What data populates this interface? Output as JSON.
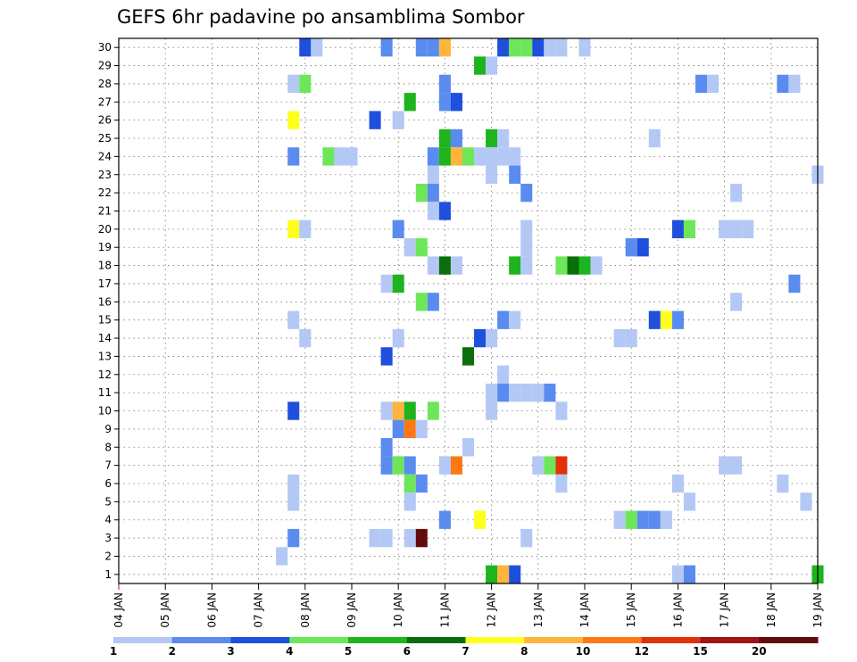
{
  "chart_data": {
    "type": "heatmap",
    "title": "GEFS 6hr padavine po ansamblima Sombor",
    "xlabel": "",
    "ylabel": "",
    "x_tick_labels": [
      "04 JAN",
      "05 JAN",
      "06 JAN",
      "07 JAN",
      "08 JAN",
      "09 JAN",
      "10 JAN",
      "11 JAN",
      "12 JAN",
      "13 JAN",
      "14 JAN",
      "15 JAN",
      "16 JAN",
      "17 JAN",
      "18 JAN",
      "19 JAN"
    ],
    "y_tick_labels": [
      "1",
      "2",
      "3",
      "4",
      "5",
      "6",
      "7",
      "8",
      "9",
      "10",
      "11",
      "12",
      "13",
      "14",
      "15",
      "16",
      "17",
      "18",
      "19",
      "20",
      "21",
      "22",
      "23",
      "24",
      "25",
      "26",
      "27",
      "28",
      "29",
      "30"
    ],
    "xlim": [
      0,
      60
    ],
    "ylim": [
      0.5,
      30.5
    ],
    "x_unit": "6h steps from 04 JAN",
    "y_unit": "ensemble member",
    "grid": true,
    "colorbar": {
      "labels": [
        "1",
        "2",
        "3",
        "4",
        "5",
        "6",
        "7",
        "8",
        "10",
        "12",
        "15",
        "20"
      ],
      "colors": [
        "#b4c8f5",
        "#5a8cf0",
        "#1e50dc",
        "#6ee65a",
        "#1eb41e",
        "#0a6e0a",
        "#ffff1e",
        "#ffb43c",
        "#ff7814",
        "#e1320a",
        "#a01414",
        "#640a0a"
      ]
    },
    "values_note": "each cell: [step, member, bin]",
    "cells": [
      [
        16,
        30,
        2
      ],
      [
        17,
        30,
        0
      ],
      [
        23,
        30,
        1
      ],
      [
        26,
        30,
        1
      ],
      [
        27,
        30,
        1
      ],
      [
        28,
        30,
        7
      ],
      [
        33,
        30,
        2
      ],
      [
        34,
        30,
        3
      ],
      [
        35,
        30,
        3
      ],
      [
        36,
        30,
        2
      ],
      [
        37,
        30,
        0
      ],
      [
        38,
        30,
        0
      ],
      [
        40,
        30,
        0
      ],
      [
        31,
        29,
        4
      ],
      [
        32,
        29,
        0
      ],
      [
        15,
        28,
        0
      ],
      [
        16,
        28,
        3
      ],
      [
        28,
        28,
        1
      ],
      [
        50,
        28,
        1
      ],
      [
        51,
        28,
        0
      ],
      [
        57,
        28,
        1
      ],
      [
        58,
        28,
        0
      ],
      [
        28,
        27,
        1
      ],
      [
        25,
        27,
        4
      ],
      [
        29,
        27,
        2
      ],
      [
        15,
        26,
        6
      ],
      [
        22,
        26,
        2
      ],
      [
        24,
        26,
        0
      ],
      [
        28,
        25,
        4
      ],
      [
        29,
        25,
        1
      ],
      [
        32,
        25,
        4
      ],
      [
        33,
        25,
        0
      ],
      [
        46,
        25,
        0
      ],
      [
        15,
        24,
        1
      ],
      [
        18,
        24,
        3
      ],
      [
        19,
        24,
        0
      ],
      [
        20,
        24,
        0
      ],
      [
        27,
        24,
        1
      ],
      [
        28,
        24,
        4
      ],
      [
        29,
        24,
        7
      ],
      [
        30,
        24,
        3
      ],
      [
        31,
        24,
        0
      ],
      [
        32,
        24,
        0
      ],
      [
        33,
        24,
        0
      ],
      [
        34,
        24,
        0
      ],
      [
        27,
        23,
        0
      ],
      [
        32,
        23,
        0
      ],
      [
        34,
        23,
        1
      ],
      [
        60,
        23,
        0
      ],
      [
        26,
        22,
        3
      ],
      [
        27,
        22,
        1
      ],
      [
        35,
        22,
        1
      ],
      [
        53,
        22,
        0
      ],
      [
        27,
        21,
        0
      ],
      [
        28,
        21,
        2
      ],
      [
        15,
        20,
        6
      ],
      [
        16,
        20,
        0
      ],
      [
        24,
        20,
        1
      ],
      [
        35,
        20,
        0
      ],
      [
        48,
        20,
        2
      ],
      [
        49,
        20,
        3
      ],
      [
        52,
        20,
        0
      ],
      [
        53,
        20,
        0
      ],
      [
        54,
        20,
        0
      ],
      [
        25,
        19,
        0
      ],
      [
        26,
        19,
        3
      ],
      [
        35,
        19,
        0
      ],
      [
        44,
        19,
        1
      ],
      [
        45,
        19,
        2
      ],
      [
        27,
        18,
        0
      ],
      [
        28,
        18,
        5
      ],
      [
        29,
        18,
        0
      ],
      [
        34,
        18,
        4
      ],
      [
        35,
        18,
        0
      ],
      [
        38,
        18,
        3
      ],
      [
        39,
        18,
        5
      ],
      [
        40,
        18,
        4
      ],
      [
        41,
        18,
        0
      ],
      [
        23,
        17,
        0
      ],
      [
        24,
        17,
        4
      ],
      [
        58,
        17,
        1
      ],
      [
        26,
        16,
        3
      ],
      [
        27,
        16,
        1
      ],
      [
        53,
        16,
        0
      ],
      [
        15,
        15,
        0
      ],
      [
        33,
        15,
        1
      ],
      [
        34,
        15,
        0
      ],
      [
        46,
        15,
        2
      ],
      [
        47,
        15,
        6
      ],
      [
        48,
        15,
        1
      ],
      [
        16,
        14,
        0
      ],
      [
        24,
        14,
        0
      ],
      [
        31,
        14,
        2
      ],
      [
        32,
        14,
        0
      ],
      [
        43,
        14,
        0
      ],
      [
        44,
        14,
        0
      ],
      [
        23,
        13,
        2
      ],
      [
        30,
        13,
        5
      ],
      [
        33,
        12,
        0
      ],
      [
        32,
        11,
        0
      ],
      [
        33,
        11,
        1
      ],
      [
        34,
        11,
        0
      ],
      [
        35,
        11,
        0
      ],
      [
        36,
        11,
        0
      ],
      [
        37,
        11,
        1
      ],
      [
        15,
        10,
        2
      ],
      [
        23,
        10,
        0
      ],
      [
        24,
        10,
        7
      ],
      [
        25,
        10,
        4
      ],
      [
        27,
        10,
        3
      ],
      [
        32,
        10,
        0
      ],
      [
        38,
        10,
        0
      ],
      [
        24,
        9,
        1
      ],
      [
        25,
        9,
        8
      ],
      [
        26,
        9,
        0
      ],
      [
        23,
        8,
        1
      ],
      [
        30,
        8,
        0
      ],
      [
        23,
        7,
        1
      ],
      [
        24,
        7,
        3
      ],
      [
        25,
        7,
        1
      ],
      [
        28,
        7,
        0
      ],
      [
        29,
        7,
        8
      ],
      [
        36,
        7,
        0
      ],
      [
        37,
        7,
        3
      ],
      [
        38,
        7,
        9
      ],
      [
        52,
        7,
        0
      ],
      [
        53,
        7,
        0
      ],
      [
        15,
        6,
        0
      ],
      [
        25,
        6,
        3
      ],
      [
        26,
        6,
        1
      ],
      [
        38,
        6,
        0
      ],
      [
        48,
        6,
        0
      ],
      [
        57,
        6,
        0
      ],
      [
        15,
        5,
        0
      ],
      [
        25,
        5,
        0
      ],
      [
        49,
        5,
        0
      ],
      [
        59,
        5,
        0
      ],
      [
        28,
        4,
        1
      ],
      [
        31,
        4,
        6
      ],
      [
        43,
        4,
        0
      ],
      [
        44,
        4,
        3
      ],
      [
        45,
        4,
        1
      ],
      [
        46,
        4,
        1
      ],
      [
        47,
        4,
        0
      ],
      [
        15,
        3,
        1
      ],
      [
        22,
        3,
        0
      ],
      [
        23,
        3,
        0
      ],
      [
        25,
        3,
        0
      ],
      [
        26,
        3,
        11
      ],
      [
        35,
        3,
        0
      ],
      [
        14,
        2,
        0
      ],
      [
        32,
        1,
        4
      ],
      [
        33,
        1,
        7
      ],
      [
        34,
        1,
        2
      ],
      [
        48,
        1,
        0
      ],
      [
        49,
        1,
        1
      ],
      [
        60,
        1,
        4
      ]
    ]
  }
}
